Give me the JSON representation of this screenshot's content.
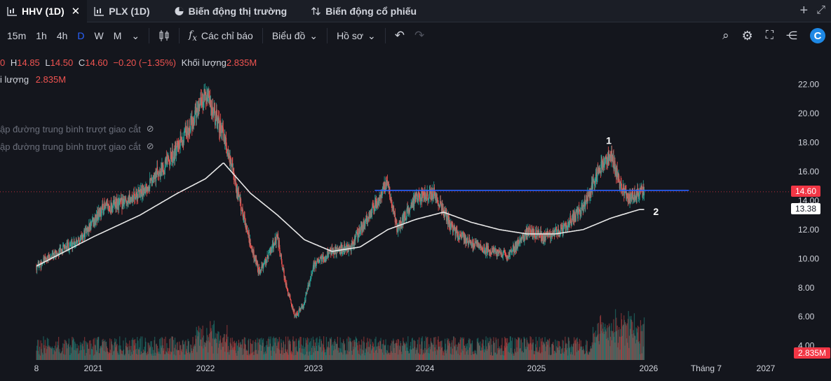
{
  "tabs": [
    {
      "label": "HHV (1D)",
      "active": true,
      "closable": true,
      "icon": "candle-chart-icon"
    },
    {
      "label": "PLX (1D)",
      "active": false,
      "icon": "candle-chart-icon"
    },
    {
      "label": "Biến động thị trường",
      "active": false,
      "icon": "pie-chart-icon"
    },
    {
      "label": "Biến động cổ phiếu",
      "active": false,
      "icon": "updown-icon"
    }
  ],
  "toolbar": {
    "intervals": [
      "15m",
      "1h",
      "4h",
      "D",
      "W",
      "M"
    ],
    "active_interval": "D",
    "indicators_label": "Các chỉ báo",
    "chart_label": "Biểu đồ",
    "profile_label": "Hồ sơ"
  },
  "legend": {
    "o_tail": "0",
    "h_label": "H",
    "h_value": "14.85",
    "l_label": "L",
    "l_value": "14.50",
    "c_label": "C",
    "c_value": "14.60",
    "change": "−0.20 (−1.35%)",
    "volume_label": "Khối lượng",
    "volume_value": "2.835M",
    "volume_line_label": "i lượng",
    "volume_line_value": "2.835M",
    "ma1_label": "ập đường trung bình trượt giao cắt",
    "ma2_label": "ập đường trung bình trượt giao cắt"
  },
  "price_tags": {
    "last": "14.60",
    "ma": "13.38",
    "volume": "2.835M"
  },
  "annotations": {
    "label1": "1",
    "label2": "2"
  },
  "colors": {
    "up": "#26a69a",
    "down": "#ef5350",
    "resistance": "#2962ff",
    "ma": "#e8e8e8",
    "last_price_tag": "#f23645",
    "ma_tag": "#ffffff"
  },
  "chart_data": {
    "type": "candlestick",
    "x_ticks": [
      "8",
      "2021",
      "2022",
      "2023",
      "2024",
      "2025",
      "2026",
      "Tháng 7",
      "2027"
    ],
    "y_ticks": [
      "22.00",
      "20.00",
      "18.00",
      "16.00",
      "14.00",
      "12.00",
      "10.00",
      "8.00",
      "6.00",
      "4.00"
    ],
    "ylim": [
      3.6,
      22.6
    ],
    "resistance_level": 14.7,
    "close_path": [
      [
        "2020-08",
        9.5
      ],
      [
        "2020-10",
        10.5
      ],
      [
        "2020-12",
        11.5
      ],
      [
        "2021-02",
        13.5
      ],
      [
        "2021-04",
        13.8
      ],
      [
        "2021-06",
        14.5
      ],
      [
        "2021-08",
        16.0
      ],
      [
        "2021-10",
        17.5
      ],
      [
        "2021-12",
        20.0
      ],
      [
        "2022-01",
        21.3
      ],
      [
        "2022-03",
        18.5
      ],
      [
        "2022-04",
        16.0
      ],
      [
        "2022-05",
        13.5
      ],
      [
        "2022-06",
        11.0
      ],
      [
        "2022-07",
        9.0
      ],
      [
        "2022-09",
        11.5
      ],
      [
        "2022-10",
        8.0
      ],
      [
        "2022-11",
        6.0
      ],
      [
        "2022-12",
        7.0
      ],
      [
        "2023-01",
        9.5
      ],
      [
        "2023-03",
        10.5
      ],
      [
        "2023-05",
        10.8
      ],
      [
        "2023-07",
        13.0
      ],
      [
        "2023-09",
        15.3
      ],
      [
        "2023-10",
        12.0
      ],
      [
        "2023-12",
        14.2
      ],
      [
        "2024-02",
        14.5
      ],
      [
        "2024-04",
        12.0
      ],
      [
        "2024-06",
        11.0
      ],
      [
        "2024-08",
        10.5
      ],
      [
        "2024-10",
        10.3
      ],
      [
        "2024-12",
        11.8
      ],
      [
        "2025-02",
        11.5
      ],
      [
        "2025-04",
        12.2
      ],
      [
        "2025-06",
        13.5
      ],
      [
        "2025-08",
        16.5
      ],
      [
        "2025-09",
        17.0
      ],
      [
        "2025-10",
        15.0
      ],
      [
        "2025-11",
        14.2
      ],
      [
        "2025-12",
        14.6
      ]
    ],
    "ma_path": [
      [
        "2020-08",
        9.5
      ],
      [
        "2021-01",
        11.5
      ],
      [
        "2021-06",
        13.0
      ],
      [
        "2021-10",
        14.5
      ],
      [
        "2022-01",
        15.5
      ],
      [
        "2022-03",
        16.6
      ],
      [
        "2022-06",
        14.5
      ],
      [
        "2022-09",
        13.0
      ],
      [
        "2022-12",
        11.3
      ],
      [
        "2023-03",
        10.5
      ],
      [
        "2023-06",
        10.8
      ],
      [
        "2023-09",
        12.0
      ],
      [
        "2023-12",
        12.7
      ],
      [
        "2024-03",
        13.2
      ],
      [
        "2024-06",
        12.5
      ],
      [
        "2024-09",
        12.0
      ],
      [
        "2024-12",
        11.7
      ],
      [
        "2025-03",
        11.7
      ],
      [
        "2025-06",
        12.0
      ],
      [
        "2025-09",
        12.8
      ],
      [
        "2025-12",
        13.38
      ]
    ],
    "last_close": 14.6,
    "ma_last": 13.38
  }
}
